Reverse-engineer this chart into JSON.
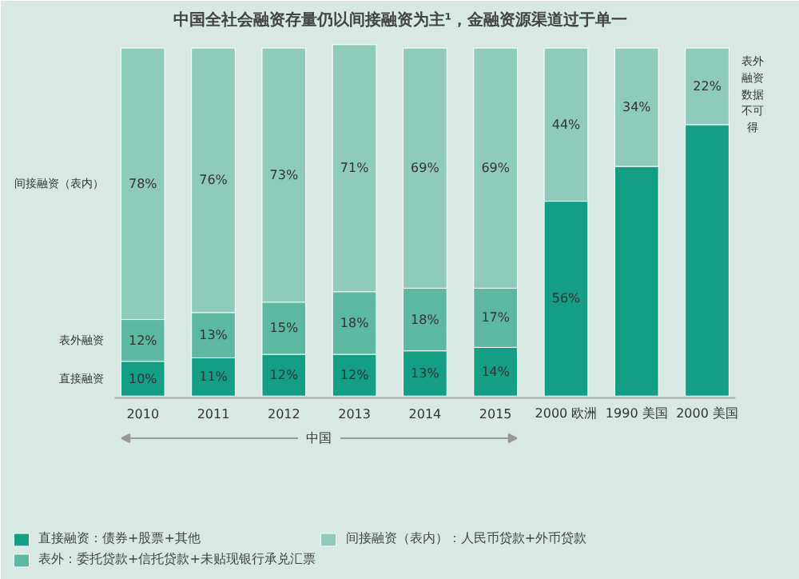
{
  "chart_data": {
    "type": "bar",
    "stacked": true,
    "title": "中国全社会融资存量仍以间接融资为主¹，金融资源渠道过于单一",
    "categories": [
      "2010",
      "2011",
      "2012",
      "2013",
      "2014",
      "2015",
      "2000 欧洲",
      "1990 美国",
      "2000 美国"
    ],
    "series": [
      {
        "name": "直接融资：债券+股票+其他",
        "color": "#149e84",
        "values": [
          10,
          11,
          12,
          12,
          13,
          14,
          56,
          66,
          78
        ],
        "value_labels": [
          "10%",
          "11%",
          "12%",
          "12%",
          "13%",
          "14%",
          "56%",
          null,
          null
        ]
      },
      {
        "name": "表外：委托贷款+信托贷款+未贴现银行承兑汇票",
        "color": "#5cb8a0",
        "values": [
          12,
          13,
          15,
          18,
          18,
          17,
          null,
          null,
          null
        ],
        "value_labels": [
          "12%",
          "13%",
          "15%",
          "18%",
          "18%",
          "17%",
          null,
          null,
          null
        ]
      },
      {
        "name": "间接融资（表内）：人民币贷款+外币贷款",
        "color": "#8fcbbb",
        "values": [
          78,
          76,
          73,
          71,
          69,
          69,
          44,
          34,
          22
        ],
        "value_labels": [
          "78%",
          "76%",
          "73%",
          "71%",
          "69%",
          "69%",
          "44%",
          "34%",
          "22%"
        ]
      }
    ],
    "annotations": [
      "直接融资",
      "表外融资",
      "间接融资（表内）",
      "中国",
      "表外融资数据不可得"
    ],
    "legend": "bottom",
    "grid": false
  }
}
